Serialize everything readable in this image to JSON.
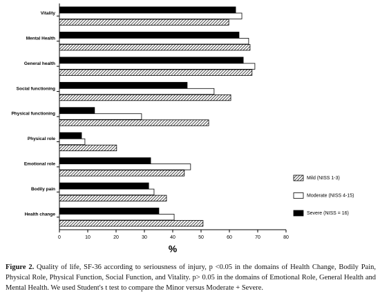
{
  "chart_data": {
    "type": "hbar",
    "categories": [
      "Vitality",
      "Mental Health",
      "General health",
      "Social functioning",
      "Physical functioning",
      "Physical role",
      "Emotional role",
      "Bodily pain",
      "Health change"
    ],
    "series": [
      {
        "name": "Mild (NISS 1-3)",
        "color": "#000000",
        "hatch": true,
        "values": [
          59.8,
          67.3,
          68,
          60.5,
          52.7,
          20.2,
          44.1,
          37.8,
          50.7
        ]
      },
      {
        "name": "Moderate (NISS 4-15)",
        "color": "#ffffff",
        "hatch": false,
        "values": [
          64.4,
          66.8,
          69,
          54.6,
          29,
          9,
          46.3,
          33.4,
          40.5
        ]
      },
      {
        "name": "Severe (NISS = 16)",
        "color": "#000000",
        "hatch": false,
        "values": [
          62.2,
          63.4,
          64.9,
          45.1,
          12.4,
          7.8,
          32.2,
          31.5,
          35.1
        ]
      }
    ],
    "xlim": [
      0,
      80
    ],
    "xticks": [
      0,
      10,
      20,
      30,
      40,
      50,
      60,
      70,
      80
    ],
    "x_label": "%",
    "legend": "right",
    "caption_label": "Figure 2.",
    "caption": "Quality of life, SF-36 according to seriousness of injury, p <0.05 in the domains of Health Change, Bodily Pain, Physical Role, Physical Function, Social Function, and Vitality. p> 0.05 in the domains of Emotional Role, General Health and Mental Health. We used Student's t test to compare the Minor versus Moderate + Severe."
  }
}
